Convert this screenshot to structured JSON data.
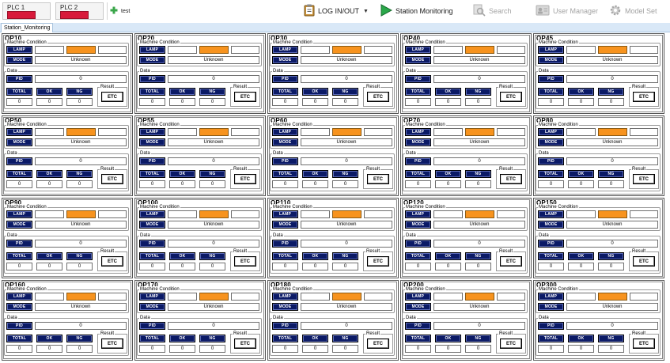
{
  "toolbar": {
    "plc1_label": "PLC 1",
    "plc2_label": "PLC 2",
    "test_label": "test",
    "login_label": "LOG IN/OUT",
    "station_monitoring_label": "Station Monitoring",
    "search_label": "Search",
    "user_manager_label": "User Manager",
    "model_set_label": "Model Set"
  },
  "colors": {
    "plc_indicator": "#d8193a",
    "lamp_active": "#f7931e",
    "button_navy": "#0b1a66"
  },
  "tabs": [
    {
      "label": "Station_Monitoring"
    }
  ],
  "labels": {
    "machine_condition": "Machine Condition",
    "lamp": "LAMP",
    "mode": "MODE",
    "data": "Data",
    "pid": "PID",
    "total": "TOTAL",
    "ok": "OK",
    "ng": "NG",
    "result": "Result",
    "etc": "ETC"
  },
  "stations": [
    {
      "name": "OP10",
      "mode": "Unknown",
      "pid": "0",
      "total": "0",
      "ok": "0",
      "ng": "0"
    },
    {
      "name": "OP20",
      "mode": "Unknown",
      "pid": "0",
      "total": "0",
      "ok": "0",
      "ng": "0"
    },
    {
      "name": "OP30",
      "mode": "Unknown",
      "pid": "0",
      "total": "0",
      "ok": "0",
      "ng": "0"
    },
    {
      "name": "OP40",
      "mode": "Unknown",
      "pid": "0",
      "total": "0",
      "ok": "0",
      "ng": "0"
    },
    {
      "name": "OP45",
      "mode": "Unknown",
      "pid": "0",
      "total": "0",
      "ok": "0",
      "ng": "0"
    },
    {
      "name": "OP50",
      "mode": "Unknown",
      "pid": "0",
      "total": "0",
      "ok": "0",
      "ng": "0"
    },
    {
      "name": "OP55",
      "mode": "Unknown",
      "pid": "0",
      "total": "0",
      "ok": "0",
      "ng": "0"
    },
    {
      "name": "OP60",
      "mode": "Unknown",
      "pid": "0",
      "total": "0",
      "ok": "0",
      "ng": "0"
    },
    {
      "name": "OP70",
      "mode": "Unknown",
      "pid": "0",
      "total": "0",
      "ok": "0",
      "ng": "0"
    },
    {
      "name": "OP80",
      "mode": "Unknown",
      "pid": "0",
      "total": "0",
      "ok": "0",
      "ng": "0"
    },
    {
      "name": "OP90",
      "mode": "Unknown",
      "pid": "0",
      "total": "0",
      "ok": "0",
      "ng": "0"
    },
    {
      "name": "OP100",
      "mode": "Unknown",
      "pid": "0",
      "total": "0",
      "ok": "0",
      "ng": "0"
    },
    {
      "name": "OP110",
      "mode": "Unknown",
      "pid": "0",
      "total": "0",
      "ok": "0",
      "ng": "0"
    },
    {
      "name": "OP120",
      "mode": "Unknown",
      "pid": "0",
      "total": "0",
      "ok": "0",
      "ng": "0"
    },
    {
      "name": "OP150",
      "mode": "Unknown",
      "pid": "0",
      "total": "0",
      "ok": "0",
      "ng": "0"
    },
    {
      "name": "OP160",
      "mode": "Unknown",
      "pid": "0",
      "total": "0",
      "ok": "0",
      "ng": "0"
    },
    {
      "name": "OP170",
      "mode": "Unknown",
      "pid": "0",
      "total": "0",
      "ok": "0",
      "ng": "0"
    },
    {
      "name": "OP180",
      "mode": "Unknown",
      "pid": "0",
      "total": "0",
      "ok": "0",
      "ng": "0"
    },
    {
      "name": "OP200",
      "mode": "Unknown",
      "pid": "0",
      "total": "0",
      "ok": "0",
      "ng": "0"
    },
    {
      "name": "OP300",
      "mode": "Unknown",
      "pid": "0",
      "total": "0",
      "ok": "0",
      "ng": "0"
    }
  ]
}
